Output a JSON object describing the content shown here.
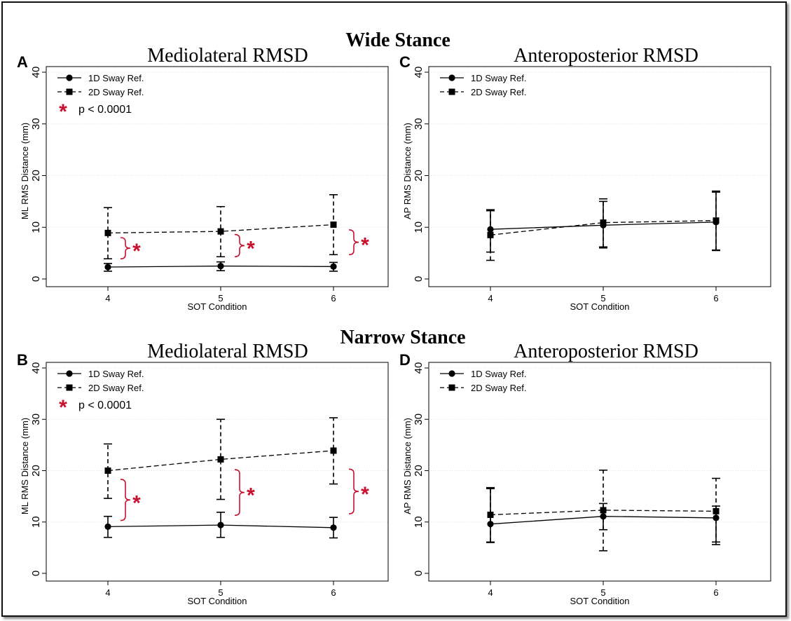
{
  "figure": {
    "row_titles": [
      "Wide Stance",
      "Narrow Stance"
    ],
    "colors": {
      "line": "#000000",
      "sig": "#c8102e",
      "grid": "#d9d9d9"
    }
  },
  "chart_data": [
    {
      "panel_letter": "A",
      "type": "line",
      "title": "Mediolateral RMSD",
      "xlabel": "SOT Condition",
      "ylabel": "ML RMS Distance (mm)",
      "x": [
        4,
        5,
        6
      ],
      "xlim": [
        4,
        6
      ],
      "ylim": [
        0,
        40
      ],
      "yticks": [
        0,
        10,
        20,
        30,
        40
      ],
      "grid": true,
      "legend_position": "top-left",
      "series": [
        {
          "name": "1D Sway Ref.",
          "style": "solid",
          "marker": "circle",
          "values": [
            2.3,
            2.5,
            2.4
          ],
          "err_low": [
            1.5,
            1.6,
            1.5
          ],
          "err_high": [
            3.0,
            3.3,
            3.2
          ]
        },
        {
          "name": "2D Sway Ref.",
          "style": "dashed",
          "marker": "square",
          "values": [
            8.9,
            9.2,
            10.5
          ],
          "err_low": [
            3.9,
            4.3,
            4.7
          ],
          "err_high": [
            13.8,
            14.0,
            16.3
          ]
        }
      ],
      "significance": {
        "legend_label": "p < 0.0001",
        "marker": "*",
        "brackets_at": [
          4,
          5,
          6
        ],
        "brackets_low": [
          3.9,
          4.3,
          4.7
        ],
        "brackets_high": [
          8.0,
          8.6,
          9.5
        ]
      }
    },
    {
      "panel_letter": "C",
      "type": "line",
      "title": "Anteroposterior RMSD",
      "xlabel": "SOT Condition",
      "ylabel": "AP RMS Distance (mm)",
      "x": [
        4,
        5,
        6
      ],
      "xlim": [
        4,
        6
      ],
      "ylim": [
        0,
        40
      ],
      "yticks": [
        0,
        10,
        20,
        30,
        40
      ],
      "grid": true,
      "legend_position": "top-left",
      "series": [
        {
          "name": "1D Sway Ref.",
          "style": "solid",
          "marker": "circle",
          "values": [
            9.6,
            10.4,
            11.0
          ],
          "err_low": [
            5.2,
            6.2,
            5.6
          ],
          "err_high": [
            13.2,
            15.0,
            16.8
          ]
        },
        {
          "name": "2D Sway Ref.",
          "style": "dashed",
          "marker": "square",
          "values": [
            8.5,
            10.9,
            11.3
          ],
          "err_low": [
            3.6,
            6.0,
            5.5
          ],
          "err_high": [
            13.4,
            15.5,
            17.0
          ]
        }
      ]
    },
    {
      "panel_letter": "B",
      "type": "line",
      "title": "Mediolateral RMSD",
      "xlabel": "SOT Condition",
      "ylabel": "ML RMS Distance (mm)",
      "x": [
        4,
        5,
        6
      ],
      "xlim": [
        4,
        6
      ],
      "ylim": [
        0,
        40
      ],
      "yticks": [
        0,
        10,
        20,
        30,
        40
      ],
      "grid": true,
      "legend_position": "top-left",
      "series": [
        {
          "name": "1D Sway Ref.",
          "style": "solid",
          "marker": "circle",
          "values": [
            9.1,
            9.4,
            8.9
          ],
          "err_low": [
            7.0,
            7.0,
            6.9
          ],
          "err_high": [
            11.1,
            11.9,
            10.9
          ]
        },
        {
          "name": "2D Sway Ref.",
          "style": "dashed",
          "marker": "square",
          "values": [
            20.0,
            22.2,
            23.9
          ],
          "err_low": [
            14.6,
            14.4,
            17.4
          ],
          "err_high": [
            25.2,
            30.0,
            30.3
          ]
        }
      ],
      "significance": {
        "legend_label": "p < 0.0001",
        "marker": "*",
        "brackets_at": [
          4,
          5,
          6
        ],
        "brackets_low": [
          10.3,
          11.3,
          11.6
        ],
        "brackets_high": [
          18.3,
          20.2,
          20.3
        ]
      }
    },
    {
      "panel_letter": "D",
      "type": "line",
      "title": "Anteroposterior RMSD",
      "xlabel": "SOT Condition",
      "ylabel": "AP RMS Distance (mm)",
      "x": [
        4,
        5,
        6
      ],
      "xlim": [
        4,
        6
      ],
      "ylim": [
        0,
        40
      ],
      "yticks": [
        0,
        10,
        20,
        30,
        40
      ],
      "grid": true,
      "legend_position": "top-left",
      "series": [
        {
          "name": "1D Sway Ref.",
          "style": "solid",
          "marker": "circle",
          "values": [
            9.6,
            11.1,
            10.8
          ],
          "err_low": [
            6.0,
            8.5,
            6.1
          ],
          "err_high": [
            16.5,
            13.6,
            13.1
          ]
        },
        {
          "name": "2D Sway Ref.",
          "style": "dashed",
          "marker": "square",
          "values": [
            11.4,
            12.3,
            12.1
          ],
          "err_low": [
            6.1,
            4.4,
            5.6
          ],
          "err_high": [
            16.7,
            20.1,
            18.5
          ]
        }
      ]
    }
  ]
}
